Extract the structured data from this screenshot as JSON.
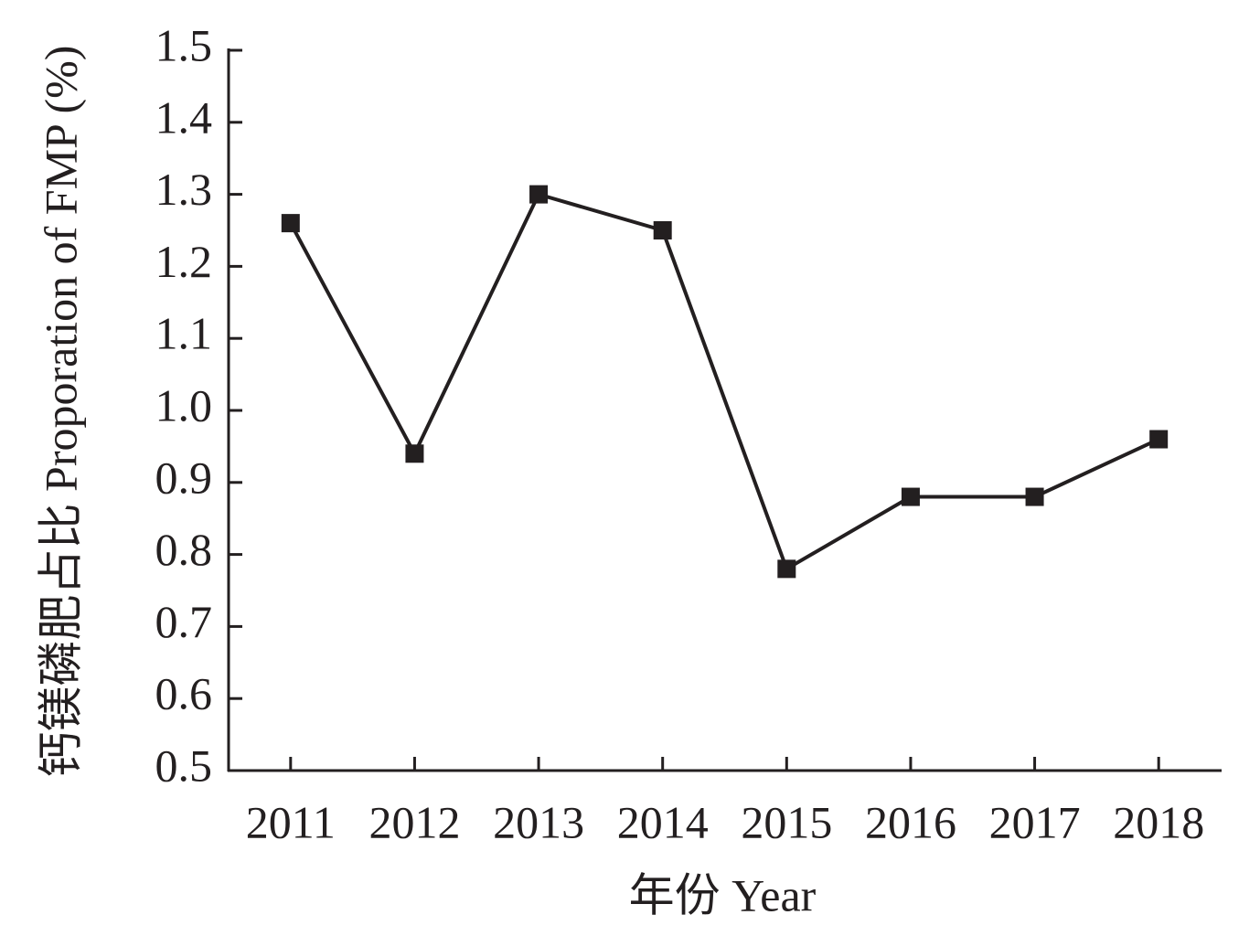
{
  "chart_data": {
    "type": "line",
    "x_label": "年份 Year",
    "y_label": "钙镁磷肥占比 Proporation of FMP (%)",
    "categories": [
      "2011",
      "2012",
      "2013",
      "2014",
      "2015",
      "2016",
      "2017",
      "2018"
    ],
    "values": [
      1.26,
      0.94,
      1.3,
      1.25,
      0.78,
      0.88,
      0.88,
      0.96
    ],
    "color": "#231f20",
    "ylim": [
      0.5,
      1.5
    ],
    "yticks": [
      0.5,
      0.6,
      0.7,
      0.8,
      0.9,
      {
        "value": 1,
        "label": "1.0"
      },
      1.1,
      1.2,
      1.3,
      1.4,
      1.5
    ],
    "grid": false
  }
}
